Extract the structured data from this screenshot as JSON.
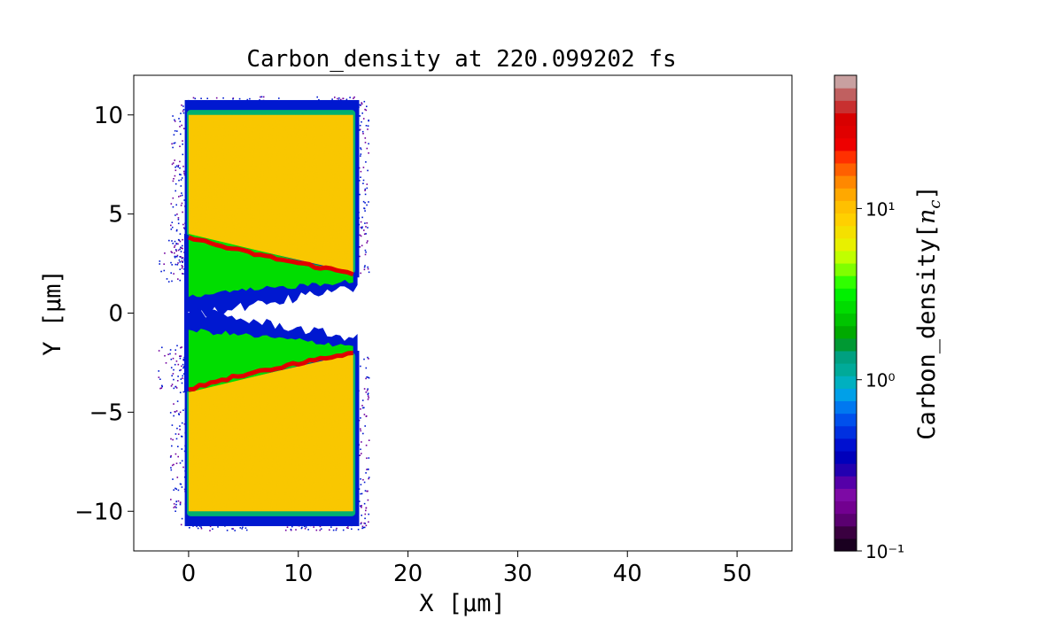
{
  "chart_data": {
    "type": "heatmap",
    "title": "Carbon_density at 220.099202 fs",
    "xlabel": "X  [μm]",
    "ylabel": "Y  [μm]",
    "xlim": [
      -5,
      55
    ],
    "ylim": [
      -12,
      12
    ],
    "xticks": [
      0,
      10,
      20,
      30,
      40,
      50
    ],
    "xtick_labels": [
      "0",
      "10",
      "20",
      "30",
      "40",
      "50"
    ],
    "yticks": [
      -10,
      -5,
      0,
      5,
      10
    ],
    "ytick_labels": [
      "−10",
      "−5",
      "0",
      "5",
      "10"
    ],
    "colorbar": {
      "label": "Carbon_density[n_c]",
      "scale": "log",
      "range": [
        0.1,
        60
      ],
      "ticks": [
        0.1,
        1,
        10
      ],
      "tick_labels": [
        "10⁻¹",
        "10⁰",
        "10¹"
      ],
      "colors": [
        "#1a0020",
        "#3a0040",
        "#5a0070",
        "#720090",
        "#7d0aa5",
        "#5500a8",
        "#2200b0",
        "#0000bb",
        "#0010d0",
        "#0030e0",
        "#0050ec",
        "#0078f0",
        "#00a0e8",
        "#00b0c0",
        "#00aa99",
        "#00a080",
        "#009933",
        "#00aa00",
        "#00c400",
        "#00dc00",
        "#00f000",
        "#30ff00",
        "#80ff00",
        "#c0ff00",
        "#e8f000",
        "#f4e000",
        "#ffd000",
        "#ffc000",
        "#ffa800",
        "#ff8800",
        "#ff6000",
        "#ff3000",
        "#ee0000",
        "#e00000",
        "#d80000",
        "#c83030",
        "#c06060",
        "#c8a0a0"
      ]
    },
    "regions": [
      {
        "name": "upper target bulk",
        "x": [
          0,
          15
        ],
        "y": [
          2,
          10
        ],
        "density": 15
      },
      {
        "name": "lower target bulk",
        "x": [
          0,
          15
        ],
        "y": [
          -10,
          -2
        ],
        "density": 15
      }
    ],
    "colors": {
      "bulk": "#f8c800",
      "edge": "#00b070",
      "halo": "#0018d0",
      "fringe": "#7000a0",
      "ridge": "#e00000",
      "mid": "#00dd00"
    }
  }
}
